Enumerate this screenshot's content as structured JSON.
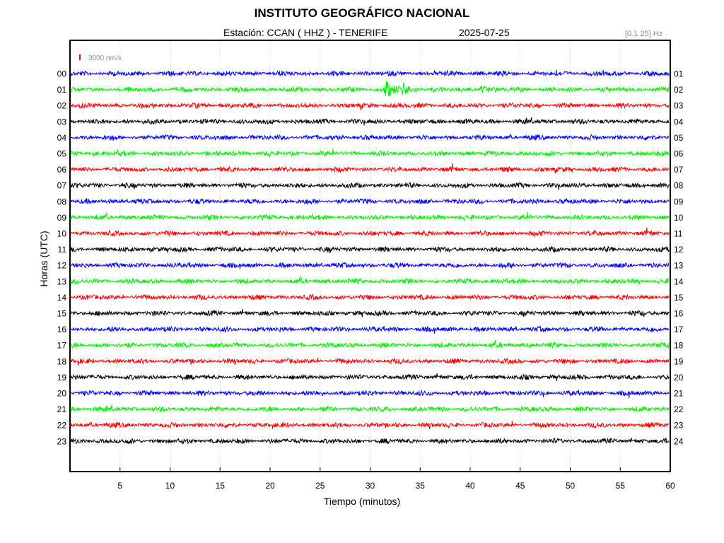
{
  "header": {
    "title": "INSTITUTO GEOGRÁFICO NACIONAL",
    "station": "Estación:  CCAN ( HHZ ) - TENERIFE",
    "date": "2025-07-25",
    "filter": "[0.1 25] Hz"
  },
  "chart_data": {
    "type": "line",
    "xlabel": "Tiempo (minutos)",
    "ylabel": "Horas (UTC)",
    "xlim": [
      0,
      60
    ],
    "x_ticks": [
      "5",
      "10",
      "15",
      "20",
      "25",
      "30",
      "35",
      "40",
      "45",
      "50",
      "55",
      "60"
    ],
    "left_labels": [
      "00",
      "01",
      "02",
      "03",
      "04",
      "05",
      "06",
      "07",
      "08",
      "09",
      "10",
      "11",
      "12",
      "13",
      "14",
      "15",
      "16",
      "17",
      "18",
      "19",
      "20",
      "21",
      "22",
      "23"
    ],
    "right_labels": [
      "01",
      "02",
      "03",
      "04",
      "05",
      "06",
      "07",
      "08",
      "09",
      "10",
      "11",
      "12",
      "13",
      "14",
      "15",
      "16",
      "17",
      "18",
      "19",
      "20",
      "21",
      "22",
      "23",
      "24"
    ],
    "scale_label": "3000 nm/s",
    "trace_colors": [
      "#0000ff",
      "#00ee00",
      "#ff0000",
      "#000000"
    ],
    "grid": true,
    "events": [
      {
        "hour": "01",
        "minute": 31.5,
        "amplitude": "large"
      },
      {
        "hour": "01",
        "minute": 33.2,
        "amplitude": "medium"
      },
      {
        "hour": "01",
        "minute": 41.0,
        "amplitude": "medium"
      }
    ]
  }
}
